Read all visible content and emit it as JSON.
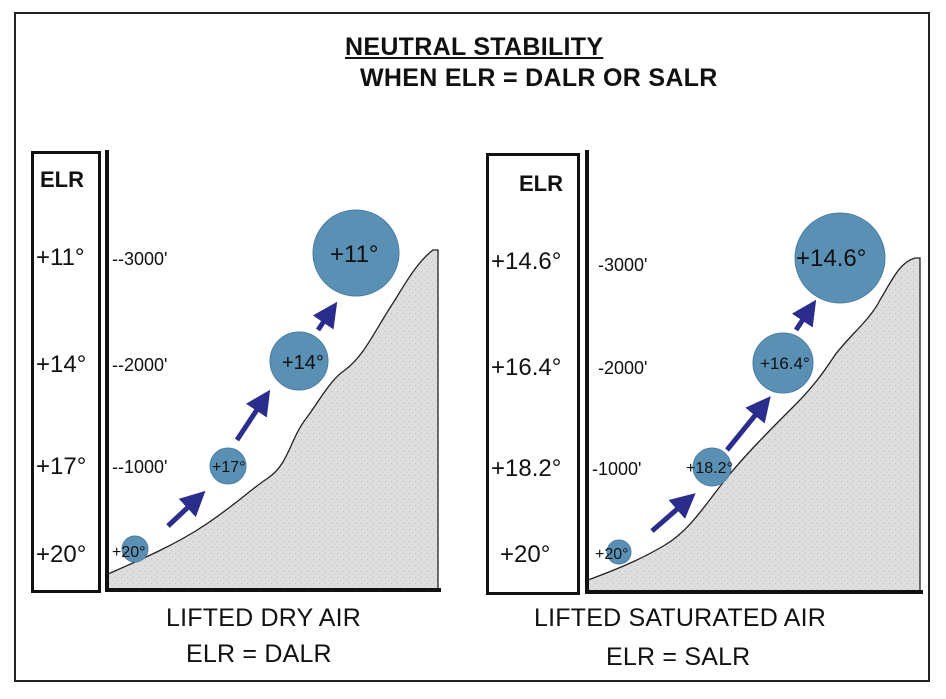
{
  "title": {
    "line1": "NEUTRAL STABILITY",
    "line2": "WHEN ELR = DALR OR SALR"
  },
  "colors": {
    "parcel": "#5b90b5",
    "arrow": "#2b2d8c",
    "mountain": "#dcdcdc",
    "line": "#111111"
  },
  "left_panel": {
    "elr_header": "ELR",
    "elr_values": [
      "+11°",
      "+14°",
      "+17°",
      "+20°"
    ],
    "altitudes": [
      "--3000'",
      "--2000'",
      "--1000'"
    ],
    "parcels": [
      "+20°",
      "+17°",
      "+14°",
      "+11°"
    ],
    "caption_line1": "LIFTED DRY AIR",
    "caption_line2": "ELR = DALR"
  },
  "right_panel": {
    "elr_header": "ELR",
    "elr_values": [
      "+14.6°",
      "+16.4°",
      "+18.2°",
      "+20°"
    ],
    "altitudes": [
      "-3000'",
      "-2000'",
      "-1000'"
    ],
    "parcels": [
      "+20°",
      "+18.2°",
      "+16.4°",
      "+14.6°"
    ],
    "caption_line1": "LIFTED SATURATED AIR",
    "caption_line2": "ELR = SALR"
  }
}
